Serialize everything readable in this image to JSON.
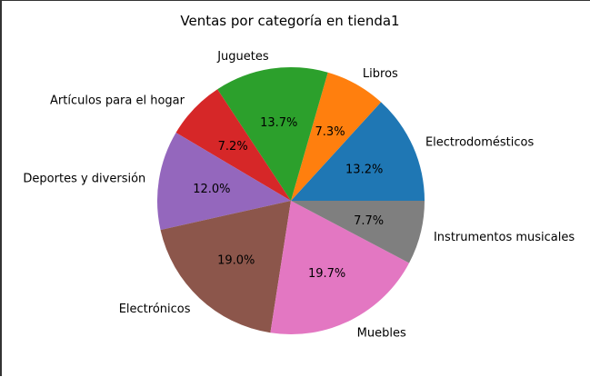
{
  "chart_data": {
    "type": "pie",
    "title": "Ventas por categoría en tienda1",
    "start_angle_deg": 0,
    "direction": "counterclockwise",
    "slices": [
      {
        "label": "Electrodomésticos",
        "value": 13.2,
        "pct_label": "13.2%",
        "color": "#1f77b4"
      },
      {
        "label": "Libros",
        "value": 7.3,
        "pct_label": "7.3%",
        "color": "#ff7f0e"
      },
      {
        "label": "Juguetes",
        "value": 13.7,
        "pct_label": "13.7%",
        "color": "#2ca02c"
      },
      {
        "label": "Artículos para el hogar",
        "value": 7.2,
        "pct_label": "7.2%",
        "color": "#d62728"
      },
      {
        "label": "Deportes y diversión",
        "value": 12.0,
        "pct_label": "12.0%",
        "color": "#9467bd"
      },
      {
        "label": "Electrónicos",
        "value": 19.0,
        "pct_label": "19.0%",
        "color": "#8c564b"
      },
      {
        "label": "Muebles",
        "value": 19.7,
        "pct_label": "19.7%",
        "color": "#e377c2"
      },
      {
        "label": "Instrumentos musicales",
        "value": 7.7,
        "pct_label": "7.7%",
        "color": "#7f7f7f"
      }
    ]
  }
}
